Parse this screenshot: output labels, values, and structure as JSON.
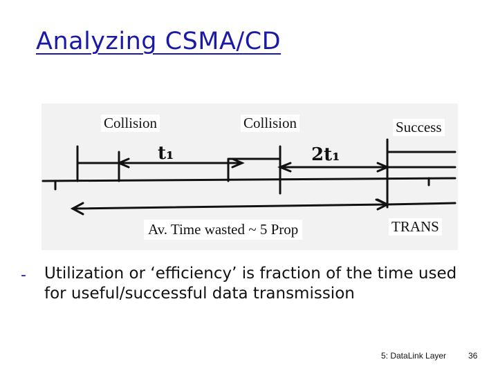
{
  "slide": {
    "title": "Analyzing CSMA/CD",
    "bullet_marker": "-",
    "bullet_text": "Utilization or ‘efficiency’ is fraction of the time used for useful/successful data transmission",
    "footer_left": "5: DataLink Layer",
    "footer_right": "36"
  },
  "diagram": {
    "labels": {
      "collision_1": "Collision",
      "collision_2": "Collision",
      "success": "Success",
      "wasted": "Av. Time wasted ~ 5 Prop",
      "trans": "TRANS",
      "t1_a": "t₁",
      "t1_b": "2t₁"
    }
  }
}
